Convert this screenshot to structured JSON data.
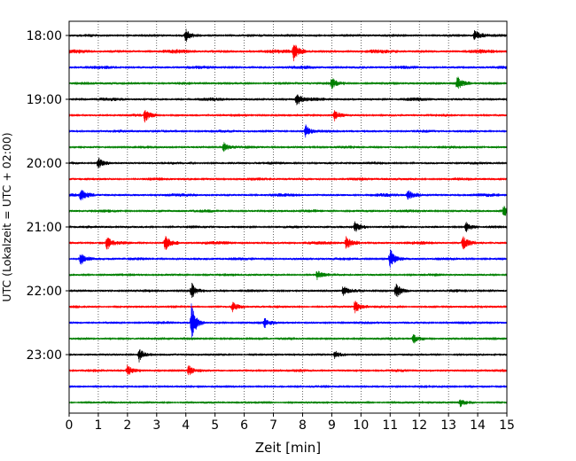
{
  "chart_data": {
    "type": "line",
    "title": "",
    "xlabel": "Zeit  [min]",
    "ylabel": "UTC (Lokalzeit = UTC + 02:00)",
    "xlim": [
      0,
      15
    ],
    "x_ticks": [
      0,
      1,
      2,
      3,
      4,
      5,
      6,
      7,
      8,
      9,
      10,
      11,
      12,
      13,
      14,
      15
    ],
    "y_tick_labels": [
      "18:00",
      "19:00",
      "20:00",
      "21:00",
      "22:00",
      "23:00"
    ],
    "grid": "vertical-dotted",
    "trace_colors": [
      "#000000",
      "#ff0000",
      "#0000ff",
      "#008000"
    ],
    "traces": [
      {
        "start": "18:00",
        "color": "#000000",
        "amplitude": 0.55,
        "events": [
          {
            "t": 4.0,
            "amp": 1.3
          },
          {
            "t": 13.9,
            "amp": 1.2
          }
        ]
      },
      {
        "start": "18:15",
        "color": "#ff0000",
        "amplitude": 0.7,
        "events": [
          {
            "t": 7.7,
            "amp": 1.4
          }
        ]
      },
      {
        "start": "18:30",
        "color": "#0000ff",
        "amplitude": 0.6,
        "events": []
      },
      {
        "start": "18:45",
        "color": "#008000",
        "amplitude": 0.55,
        "events": [
          {
            "t": 9.0,
            "amp": 1.1
          },
          {
            "t": 13.3,
            "amp": 1.5
          }
        ]
      },
      {
        "start": "19:00",
        "color": "#000000",
        "amplitude": 0.6,
        "events": [
          {
            "t": 7.8,
            "amp": 1.2
          }
        ]
      },
      {
        "start": "19:15",
        "color": "#ff0000",
        "amplitude": 0.5,
        "events": [
          {
            "t": 2.6,
            "amp": 1.6
          },
          {
            "t": 9.1,
            "amp": 1.1
          }
        ]
      },
      {
        "start": "19:30",
        "color": "#0000ff",
        "amplitude": 0.55,
        "events": [
          {
            "t": 8.1,
            "amp": 1.3
          }
        ]
      },
      {
        "start": "19:45",
        "color": "#008000",
        "amplitude": 0.5,
        "events": [
          {
            "t": 5.3,
            "amp": 1.0
          }
        ]
      },
      {
        "start": "20:00",
        "color": "#000000",
        "amplitude": 0.5,
        "events": [
          {
            "t": 1.0,
            "amp": 1.2
          }
        ]
      },
      {
        "start": "20:15",
        "color": "#ff0000",
        "amplitude": 0.55,
        "events": []
      },
      {
        "start": "20:30",
        "color": "#0000ff",
        "amplitude": 0.6,
        "events": [
          {
            "t": 0.4,
            "amp": 1.2
          },
          {
            "t": 11.6,
            "amp": 1.1
          }
        ]
      },
      {
        "start": "20:45",
        "color": "#008000",
        "amplitude": 0.55,
        "events": [
          {
            "t": 14.9,
            "amp": 1.2
          }
        ]
      },
      {
        "start": "21:00",
        "color": "#000000",
        "amplitude": 0.5,
        "events": [
          {
            "t": 9.8,
            "amp": 1.2
          },
          {
            "t": 13.6,
            "amp": 1.1
          }
        ]
      },
      {
        "start": "21:15",
        "color": "#ff0000",
        "amplitude": 0.6,
        "events": [
          {
            "t": 1.3,
            "amp": 1.3
          },
          {
            "t": 3.3,
            "amp": 1.4
          },
          {
            "t": 9.5,
            "amp": 1.3
          },
          {
            "t": 13.5,
            "amp": 1.3
          }
        ]
      },
      {
        "start": "21:30",
        "color": "#0000ff",
        "amplitude": 0.55,
        "events": [
          {
            "t": 0.4,
            "amp": 1.3
          },
          {
            "t": 11.0,
            "amp": 2.2
          }
        ]
      },
      {
        "start": "21:45",
        "color": "#008000",
        "amplitude": 0.5,
        "events": [
          {
            "t": 8.5,
            "amp": 1.0
          }
        ]
      },
      {
        "start": "22:00",
        "color": "#000000",
        "amplitude": 0.5,
        "events": [
          {
            "t": 4.2,
            "amp": 1.8
          },
          {
            "t": 9.4,
            "amp": 1.4
          },
          {
            "t": 11.2,
            "amp": 2.0
          }
        ]
      },
      {
        "start": "22:15",
        "color": "#ff0000",
        "amplitude": 0.5,
        "events": [
          {
            "t": 5.6,
            "amp": 1.1
          },
          {
            "t": 9.8,
            "amp": 1.6
          }
        ]
      },
      {
        "start": "22:30",
        "color": "#0000ff",
        "amplitude": 0.5,
        "events": [
          {
            "t": 4.2,
            "amp": 5.5
          },
          {
            "t": 6.7,
            "amp": 1.1
          }
        ]
      },
      {
        "start": "22:45",
        "color": "#008000",
        "amplitude": 0.45,
        "events": [
          {
            "t": 11.8,
            "amp": 1.2
          }
        ]
      },
      {
        "start": "23:00",
        "color": "#000000",
        "amplitude": 0.45,
        "events": [
          {
            "t": 2.4,
            "amp": 1.8
          },
          {
            "t": 9.1,
            "amp": 1.0
          }
        ]
      },
      {
        "start": "23:15",
        "color": "#ff0000",
        "amplitude": 0.5,
        "events": [
          {
            "t": 2.0,
            "amp": 1.3
          },
          {
            "t": 4.1,
            "amp": 1.2
          }
        ]
      },
      {
        "start": "23:30",
        "color": "#0000ff",
        "amplitude": 0.45,
        "events": []
      },
      {
        "start": "23:45",
        "color": "#008000",
        "amplitude": 0.45,
        "events": [
          {
            "t": 13.4,
            "amp": 1.1
          }
        ]
      }
    ]
  }
}
